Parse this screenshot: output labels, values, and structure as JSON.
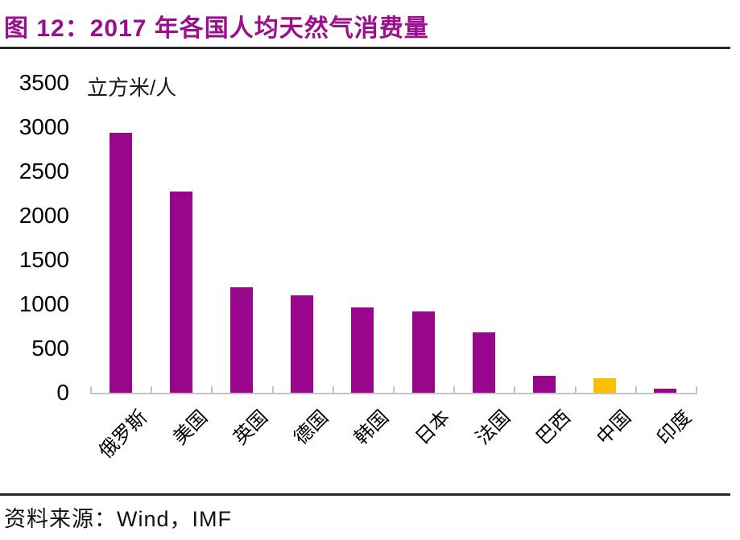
{
  "figure": {
    "title": "图 12：2017 年各国人均天然气消费量",
    "source": "资料来源：Wind，IMF"
  },
  "colors": {
    "title": "#9A0F8C",
    "bar": "#98078B",
    "highlight_bar": "#FBBE00",
    "axis": "#C3C3C3",
    "rule": "#262626"
  },
  "chart_data": {
    "type": "bar",
    "title": "2017 年各国人均天然气消费量",
    "unit_label": "立方米/人",
    "categories": [
      "俄罗斯",
      "美国",
      "英国",
      "德国",
      "韩国",
      "日本",
      "法国",
      "巴西",
      "中国",
      "印度"
    ],
    "values": [
      2940,
      2270,
      1190,
      1100,
      965,
      920,
      680,
      190,
      165,
      42
    ],
    "highlight_category": "中国",
    "xlabel": "",
    "ylabel": "立方米/人",
    "ylim": [
      0,
      3500
    ],
    "yticks": [
      0,
      500,
      1000,
      1500,
      2000,
      2500,
      3000,
      3500
    ],
    "grid": false,
    "legend": false,
    "x_tick_rotation": -45
  }
}
